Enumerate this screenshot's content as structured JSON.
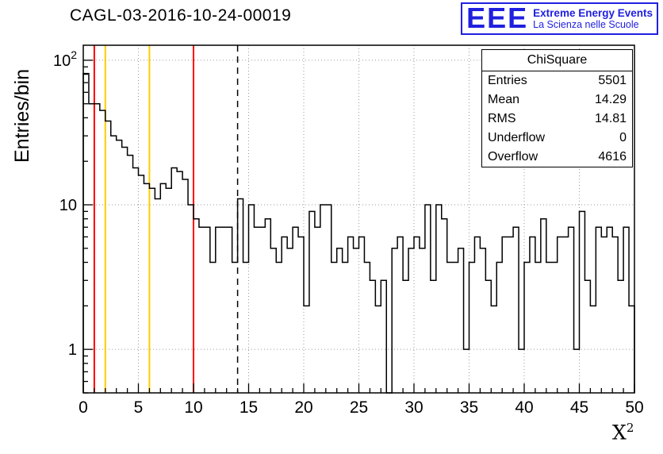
{
  "header": {
    "title": "CAGL-03-2016-10-24-00019"
  },
  "logo": {
    "acronym": "EEE",
    "line1": "Extreme Energy Events",
    "line2": "La Scienza nelle Scuole",
    "color": "#2020e0"
  },
  "stats": {
    "title": "ChiSquare",
    "rows": [
      {
        "label": "Entries",
        "value": "5501"
      },
      {
        "label": "Mean",
        "value": "14.29"
      },
      {
        "label": "RMS",
        "value": "14.81"
      },
      {
        "label": "Underflow",
        "value": "0"
      },
      {
        "label": "Overflow",
        "value": "4616"
      }
    ]
  },
  "colors": {
    "histogram": "#000000",
    "red_lines": "#ff0000",
    "yellow_lines": "#ffcc00",
    "dashed_line": "#000000",
    "grid": "#999999",
    "logo_blue": "#2020e0"
  },
  "chart_data": {
    "type": "bar",
    "style": "step-histogram",
    "title": "CAGL-03-2016-10-24-00019",
    "xlabel": "X^2",
    "xlabel_base": "X",
    "xlabel_exp": "2",
    "ylabel": "Entries/bin",
    "yscale": "log",
    "xlim": [
      0,
      50
    ],
    "ylim": [
      0.5,
      127
    ],
    "bin_width": 0.5,
    "x_ticks": [
      0,
      5,
      10,
      15,
      20,
      25,
      30,
      35,
      40,
      45,
      50
    ],
    "y_ticks": [
      1,
      10,
      100
    ],
    "grid": true,
    "legend": "none",
    "values": [
      81,
      50,
      50,
      45,
      38,
      30,
      28,
      25,
      22,
      18,
      16,
      14,
      13,
      11,
      14,
      13,
      18,
      17,
      15,
      10,
      8,
      7,
      7,
      4,
      7,
      7,
      7,
      4,
      11,
      4,
      10,
      7,
      7,
      8,
      5,
      4,
      6,
      5,
      7,
      6,
      2,
      9,
      7,
      10,
      10,
      4,
      5,
      4,
      6,
      5,
      6,
      4,
      3,
      2,
      3,
      0,
      5,
      6,
      3,
      5,
      6,
      5,
      10,
      3,
      10,
      8,
      4,
      4,
      5,
      1,
      4,
      6,
      5,
      3,
      2,
      4,
      6,
      6,
      7,
      1,
      4,
      6,
      4,
      8,
      4,
      4,
      6,
      6,
      7,
      1,
      9,
      3,
      2,
      7,
      6,
      7,
      6,
      3,
      7,
      2
    ],
    "marker_lines": [
      {
        "name": "red-cut-line-low",
        "x": 1,
        "color": "#ff0000",
        "style": "solid",
        "width": 2
      },
      {
        "name": "yellow-cut-line-low",
        "x": 2,
        "color": "#ffcc00",
        "style": "solid",
        "width": 2
      },
      {
        "name": "yellow-cut-line-high",
        "x": 6,
        "color": "#ffcc00",
        "style": "solid",
        "width": 2
      },
      {
        "name": "red-cut-line-high",
        "x": 10,
        "color": "#ff0000",
        "style": "solid",
        "width": 2
      },
      {
        "name": "dashed-reference-line",
        "x": 14,
        "color": "#000000",
        "style": "dashed",
        "width": 1.5
      }
    ]
  }
}
